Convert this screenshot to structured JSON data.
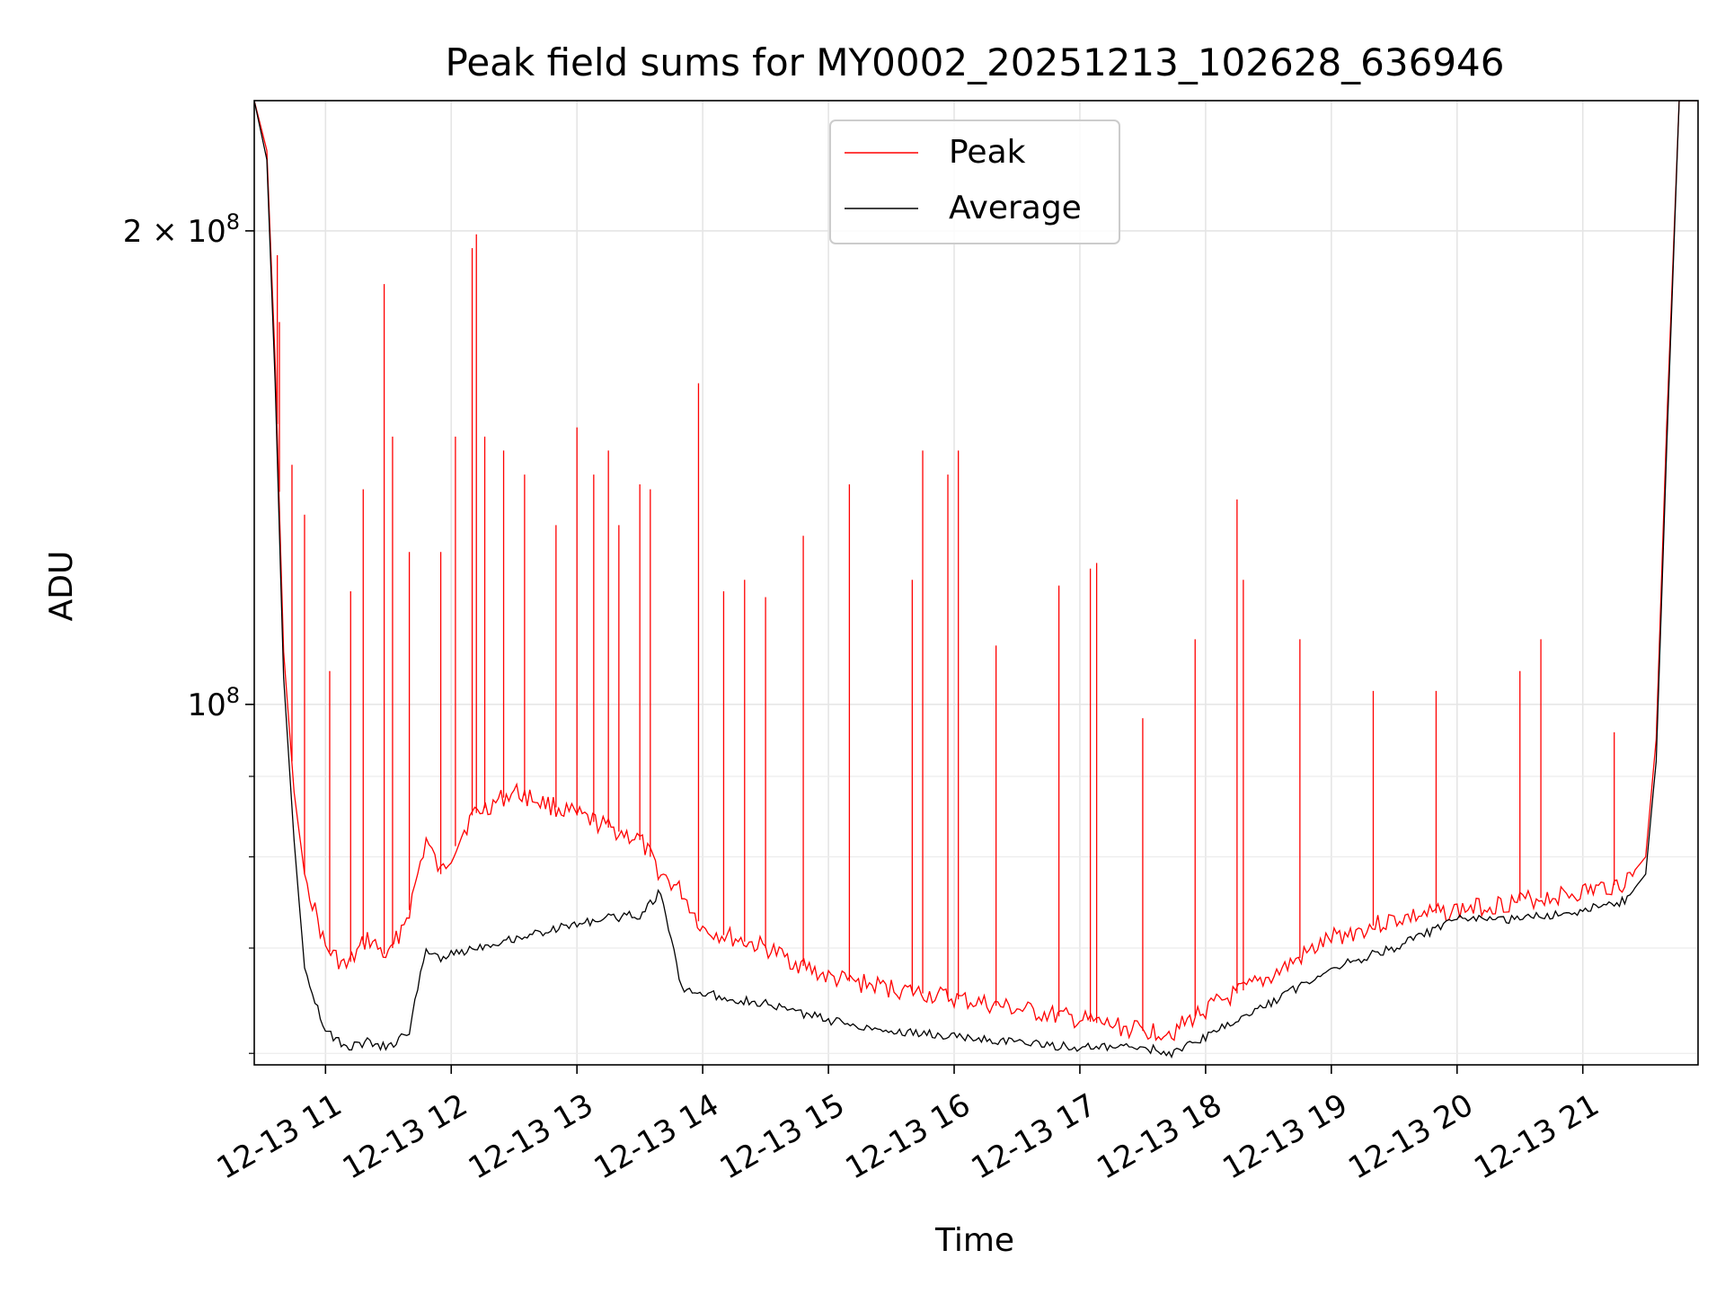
{
  "chart_data": {
    "type": "line",
    "title": "Peak field sums for MY0002_20251213_102628_636946",
    "xlabel": "Time",
    "ylabel": "ADU",
    "yscale": "log",
    "grid": true,
    "legend_position": "upper-center",
    "xlim": [
      "2025-12-13 10:26",
      "2025-12-13 21:55"
    ],
    "ylim": [
      59000000,
      242000000
    ],
    "x_ticks": [
      {
        "value": "2025-12-13 11:00",
        "label": "12-13 11"
      },
      {
        "value": "2025-12-13 12:00",
        "label": "12-13 12"
      },
      {
        "value": "2025-12-13 13:00",
        "label": "12-13 13"
      },
      {
        "value": "2025-12-13 14:00",
        "label": "12-13 14"
      },
      {
        "value": "2025-12-13 15:00",
        "label": "12-13 15"
      },
      {
        "value": "2025-12-13 16:00",
        "label": "12-13 16"
      },
      {
        "value": "2025-12-13 17:00",
        "label": "12-13 17"
      },
      {
        "value": "2025-12-13 18:00",
        "label": "12-13 18"
      },
      {
        "value": "2025-12-13 19:00",
        "label": "12-13 19"
      },
      {
        "value": "2025-12-13 20:00",
        "label": "12-13 20"
      },
      {
        "value": "2025-12-13 21:00",
        "label": "12-13 21"
      }
    ],
    "y_major_ticks": [
      {
        "value": 100000000,
        "label_base": "10",
        "label_exp": "8"
      },
      {
        "value": 200000000,
        "label_base": "2 × 10",
        "label_exp": "8"
      }
    ],
    "y_minor_ticks": [
      60000000,
      70000000,
      80000000,
      90000000
    ],
    "series": [
      {
        "name": "Peak",
        "color": "#ff0000",
        "x": [
          "2025-12-13 10:26",
          "2025-12-13 10:32",
          "2025-12-13 10:36",
          "2025-12-13 10:40",
          "2025-12-13 10:45",
          "2025-12-13 10:50",
          "2025-12-13 11:00",
          "2025-12-13 11:10",
          "2025-12-13 11:20",
          "2025-12-13 11:30",
          "2025-12-13 11:40",
          "2025-12-13 11:48",
          "2025-12-13 11:55",
          "2025-12-13 12:10",
          "2025-12-13 12:30",
          "2025-12-13 12:50",
          "2025-12-13 13:10",
          "2025-12-13 13:30",
          "2025-12-13 13:40",
          "2025-12-13 13:50",
          "2025-12-13 14:00",
          "2025-12-13 14:30",
          "2025-12-13 15:00",
          "2025-12-13 15:30",
          "2025-12-13 16:00",
          "2025-12-13 16:30",
          "2025-12-13 17:00",
          "2025-12-13 17:30",
          "2025-12-13 17:45",
          "2025-12-13 18:00",
          "2025-12-13 18:30",
          "2025-12-13 19:00",
          "2025-12-13 19:30",
          "2025-12-13 20:00",
          "2025-12-13 20:30",
          "2025-12-13 21:00",
          "2025-12-13 21:20",
          "2025-12-13 21:30",
          "2025-12-13 21:35",
          "2025-12-13 21:40",
          "2025-12-13 21:46",
          "2025-12-13 21:55"
        ],
        "y": [
          242000000,
          225000000,
          165000000,
          108000000,
          88000000,
          78000000,
          70000000,
          68000000,
          71000000,
          69000000,
          74000000,
          82000000,
          78000000,
          85000000,
          88000000,
          86000000,
          84000000,
          82000000,
          78000000,
          76000000,
          72000000,
          70000000,
          67000000,
          66000000,
          65000000,
          64000000,
          63000000,
          62000000,
          62000000,
          64000000,
          67000000,
          71000000,
          73000000,
          74000000,
          75000000,
          76000000,
          77000000,
          80000000,
          95000000,
          150000000,
          242000000,
          242000000
        ],
        "spikes": [
          [
            "2025-12-13 10:37",
            193000000
          ],
          [
            "2025-12-13 10:38",
            175000000
          ],
          [
            "2025-12-13 10:44",
            142000000
          ],
          [
            "2025-12-13 10:50",
            132000000
          ],
          [
            "2025-12-13 11:02",
            105000000
          ],
          [
            "2025-12-13 11:12",
            118000000
          ],
          [
            "2025-12-13 11:18",
            137000000
          ],
          [
            "2025-12-13 11:28",
            185000000
          ],
          [
            "2025-12-13 11:32",
            148000000
          ],
          [
            "2025-12-13 11:40",
            125000000
          ],
          [
            "2025-12-13 11:55",
            125000000
          ],
          [
            "2025-12-13 12:02",
            148000000
          ],
          [
            "2025-12-13 12:10",
            195000000
          ],
          [
            "2025-12-13 12:12",
            199000000
          ],
          [
            "2025-12-13 12:16",
            148000000
          ],
          [
            "2025-12-13 12:25",
            145000000
          ],
          [
            "2025-12-13 12:35",
            140000000
          ],
          [
            "2025-12-13 12:50",
            130000000
          ],
          [
            "2025-12-13 13:00",
            150000000
          ],
          [
            "2025-12-13 13:08",
            140000000
          ],
          [
            "2025-12-13 13:15",
            145000000
          ],
          [
            "2025-12-13 13:20",
            130000000
          ],
          [
            "2025-12-13 13:30",
            138000000
          ],
          [
            "2025-12-13 13:35",
            137000000
          ],
          [
            "2025-12-13 13:58",
            160000000
          ],
          [
            "2025-12-13 14:10",
            118000000
          ],
          [
            "2025-12-13 14:20",
            120000000
          ],
          [
            "2025-12-13 14:30",
            117000000
          ],
          [
            "2025-12-13 14:48",
            128000000
          ],
          [
            "2025-12-13 15:10",
            138000000
          ],
          [
            "2025-12-13 15:40",
            120000000
          ],
          [
            "2025-12-13 15:45",
            145000000
          ],
          [
            "2025-12-13 15:57",
            140000000
          ],
          [
            "2025-12-13 16:02",
            145000000
          ],
          [
            "2025-12-13 16:20",
            109000000
          ],
          [
            "2025-12-13 16:50",
            119000000
          ],
          [
            "2025-12-13 17:05",
            122000000
          ],
          [
            "2025-12-13 17:08",
            123000000
          ],
          [
            "2025-12-13 17:30",
            98000000
          ],
          [
            "2025-12-13 17:55",
            110000000
          ],
          [
            "2025-12-13 18:15",
            135000000
          ],
          [
            "2025-12-13 18:18",
            120000000
          ],
          [
            "2025-12-13 18:45",
            110000000
          ],
          [
            "2025-12-13 19:20",
            102000000
          ],
          [
            "2025-12-13 19:50",
            102000000
          ],
          [
            "2025-12-13 20:30",
            105000000
          ],
          [
            "2025-12-13 20:40",
            110000000
          ],
          [
            "2025-12-13 21:15",
            96000000
          ]
        ]
      },
      {
        "name": "Average",
        "color": "#000000",
        "x": [
          "2025-12-13 10:26",
          "2025-12-13 10:32",
          "2025-12-13 10:36",
          "2025-12-13 10:40",
          "2025-12-13 10:45",
          "2025-12-13 10:50",
          "2025-12-13 11:00",
          "2025-12-13 11:10",
          "2025-12-13 11:20",
          "2025-12-13 11:30",
          "2025-12-13 11:40",
          "2025-12-13 11:48",
          "2025-12-13 11:55",
          "2025-12-13 12:10",
          "2025-12-13 12:30",
          "2025-12-13 12:50",
          "2025-12-13 13:10",
          "2025-12-13 13:30",
          "2025-12-13 13:40",
          "2025-12-13 13:50",
          "2025-12-13 14:00",
          "2025-12-13 14:30",
          "2025-12-13 15:00",
          "2025-12-13 15:30",
          "2025-12-13 16:00",
          "2025-12-13 16:30",
          "2025-12-13 17:00",
          "2025-12-13 17:30",
          "2025-12-13 17:45",
          "2025-12-13 18:00",
          "2025-12-13 18:30",
          "2025-12-13 19:00",
          "2025-12-13 19:30",
          "2025-12-13 20:00",
          "2025-12-13 20:30",
          "2025-12-13 21:00",
          "2025-12-13 21:20",
          "2025-12-13 21:30",
          "2025-12-13 21:35",
          "2025-12-13 21:40",
          "2025-12-13 21:46",
          "2025-12-13 21:55"
        ],
        "y": [
          242000000,
          222000000,
          160000000,
          104000000,
          82000000,
          68000000,
          62000000,
          60500000,
          61000000,
          60500000,
          62000000,
          70000000,
          69000000,
          70000000,
          71000000,
          72000000,
          73000000,
          73500000,
          76000000,
          66000000,
          65500000,
          64500000,
          63000000,
          62000000,
          61500000,
          61000000,
          60500000,
          60500000,
          60000000,
          61500000,
          64500000,
          68000000,
          70000000,
          73000000,
          73000000,
          74000000,
          75000000,
          78000000,
          92000000,
          145000000,
          242000000,
          242000000
        ]
      }
    ]
  }
}
